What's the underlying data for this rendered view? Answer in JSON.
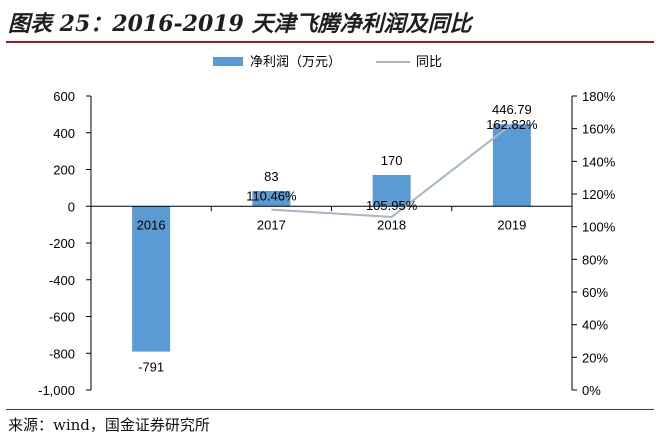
{
  "page": {
    "title": "图表 25：2016-2019 天津飞腾净利润及同比",
    "source": "来源：wind，国金证券研究所"
  },
  "colors": {
    "bar": "#5b9bd5",
    "line": "#a5b6c8",
    "title_rule": "#9b1c1c",
    "axis": "#000000"
  },
  "chart_data": {
    "type": "bar",
    "categories": [
      "2016",
      "2017",
      "2018",
      "2019"
    ],
    "series": [
      {
        "name": "净利润（万元）",
        "type": "bar",
        "axis": "left",
        "values": [
          -791,
          83,
          170,
          446.79
        ],
        "labels": [
          "-791",
          "83",
          "170",
          "446.79"
        ]
      },
      {
        "name": "同比",
        "type": "line",
        "axis": "right",
        "values": [
          null,
          110.46,
          105.95,
          162.82
        ],
        "labels": [
          "",
          "110.46%",
          "105.95%",
          "162.82%"
        ]
      }
    ],
    "y_left": {
      "min": -1000,
      "max": 600,
      "ticks": [
        600,
        400,
        200,
        0,
        -200,
        -400,
        -600,
        -800,
        -1000
      ],
      "tick_labels": [
        "600",
        "400",
        "200",
        "0",
        "-200",
        "-400",
        "-600",
        "-800",
        "-1,000"
      ]
    },
    "y_right": {
      "min": 0,
      "max": 180,
      "ticks": [
        180,
        160,
        140,
        120,
        100,
        80,
        60,
        40,
        20,
        0
      ],
      "tick_labels": [
        "180%",
        "160%",
        "140%",
        "120%",
        "100%",
        "80%",
        "60%",
        "40%",
        "20%",
        "0%"
      ]
    },
    "legend": {
      "position": "top-center",
      "items": [
        {
          "label": "净利润（万元）",
          "kind": "bar"
        },
        {
          "label": "同比",
          "kind": "line"
        }
      ]
    },
    "grid": false
  }
}
